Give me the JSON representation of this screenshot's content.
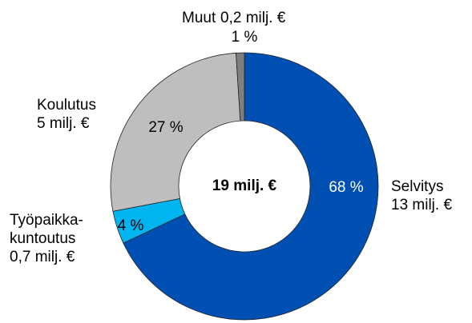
{
  "chart_data": {
    "type": "donut",
    "categories": [
      "Selvitys",
      "Työpaikka-\nkuntoutus",
      "Koulutus",
      "Muut"
    ],
    "amounts": [
      "13 milj. €",
      "0,7 milj. €",
      "5 milj. €",
      "0,2 milj. €"
    ],
    "values": [
      68,
      4,
      27,
      1
    ],
    "value_labels": [
      "68 %",
      "4 %",
      "27 %",
      "1 %"
    ],
    "colors": [
      "#0050b4",
      "#00b4f0",
      "#bebebe",
      "#7f7f7f"
    ],
    "center_label": "19 milj. €"
  }
}
